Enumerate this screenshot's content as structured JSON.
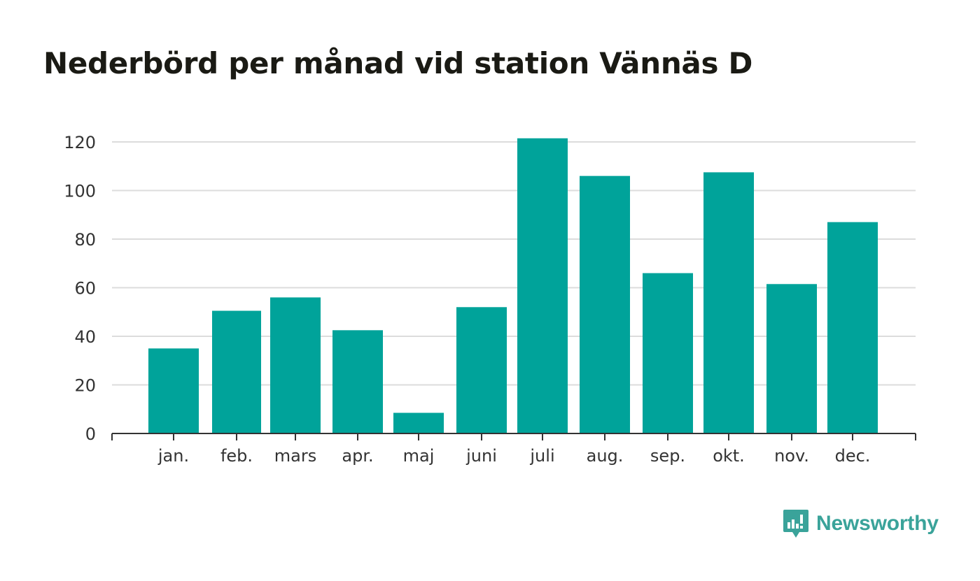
{
  "title": "Nederbörd per månad vid station Vännäs D",
  "brand": {
    "name": "Newsworthy",
    "color": "#3aa39a"
  },
  "chart_data": {
    "type": "bar",
    "title": "Nederbörd per månad vid station Vännäs D",
    "xlabel": "",
    "ylabel": "",
    "categories": [
      "jan.",
      "feb.",
      "mars",
      "apr.",
      "maj",
      "juni",
      "juli",
      "aug.",
      "sep.",
      "okt.",
      "nov.",
      "dec."
    ],
    "values": [
      35,
      50.5,
      56,
      42.5,
      8.5,
      52,
      121.5,
      106,
      66,
      107.5,
      61.5,
      87
    ],
    "ylim": [
      0,
      120
    ],
    "yticks": [
      0,
      20,
      40,
      60,
      80,
      100,
      120
    ],
    "grid": true,
    "legend": "none",
    "bar_color": "#00a39a"
  }
}
